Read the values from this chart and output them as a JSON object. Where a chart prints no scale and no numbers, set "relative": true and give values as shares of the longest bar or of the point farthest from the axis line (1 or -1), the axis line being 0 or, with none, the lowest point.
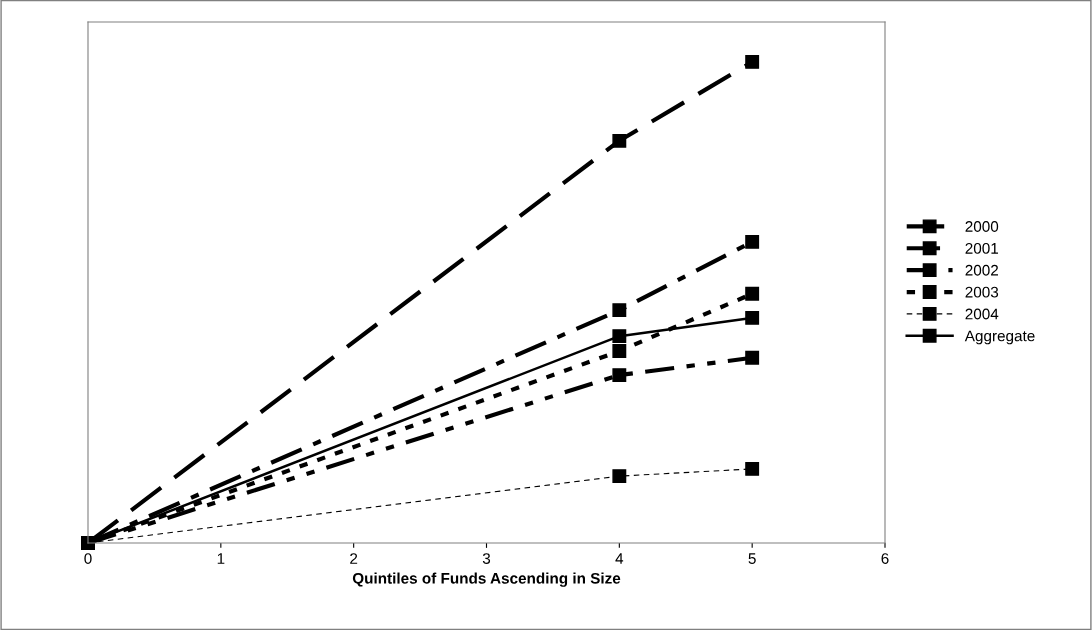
{
  "chart_data": {
    "type": "line",
    "relative": true,
    "xlabel": "Quintiles of Funds Ascending in Size",
    "xlim": [
      0,
      6
    ],
    "xticks": [
      0,
      1,
      2,
      3,
      4,
      5,
      6
    ],
    "marker": "square",
    "legend": "right",
    "grid": false,
    "series": [
      {
        "name": "2000",
        "color": "#000000",
        "line_style": "dashed",
        "x": [
          0,
          4,
          5
        ],
        "values": [
          0,
          0.836,
          1
        ]
      },
      {
        "name": "2001",
        "color": "#000000",
        "line_style": "dashed",
        "x": [
          0,
          4,
          5
        ],
        "values": [
          0,
          0.484,
          0.626
        ]
      },
      {
        "name": "2002",
        "color": "#000000",
        "line_style": "dashed",
        "x": [
          0,
          4,
          5
        ],
        "values": [
          0,
          0.349,
          0.385
        ]
      },
      {
        "name": "2003",
        "color": "#000000",
        "line_style": "dotted",
        "x": [
          0,
          4,
          5
        ],
        "values": [
          0,
          0.399,
          0.518
        ]
      },
      {
        "name": "2004",
        "color": "#000000",
        "line_style": "dashed",
        "x": [
          0,
          4,
          5
        ],
        "values": [
          0,
          0.139,
          0.154
        ]
      },
      {
        "name": "Aggregate",
        "color": "#000000",
        "line_style": "solid",
        "x": [
          0,
          4,
          5
        ],
        "values": [
          0,
          0.43,
          0.468
        ]
      }
    ]
  }
}
